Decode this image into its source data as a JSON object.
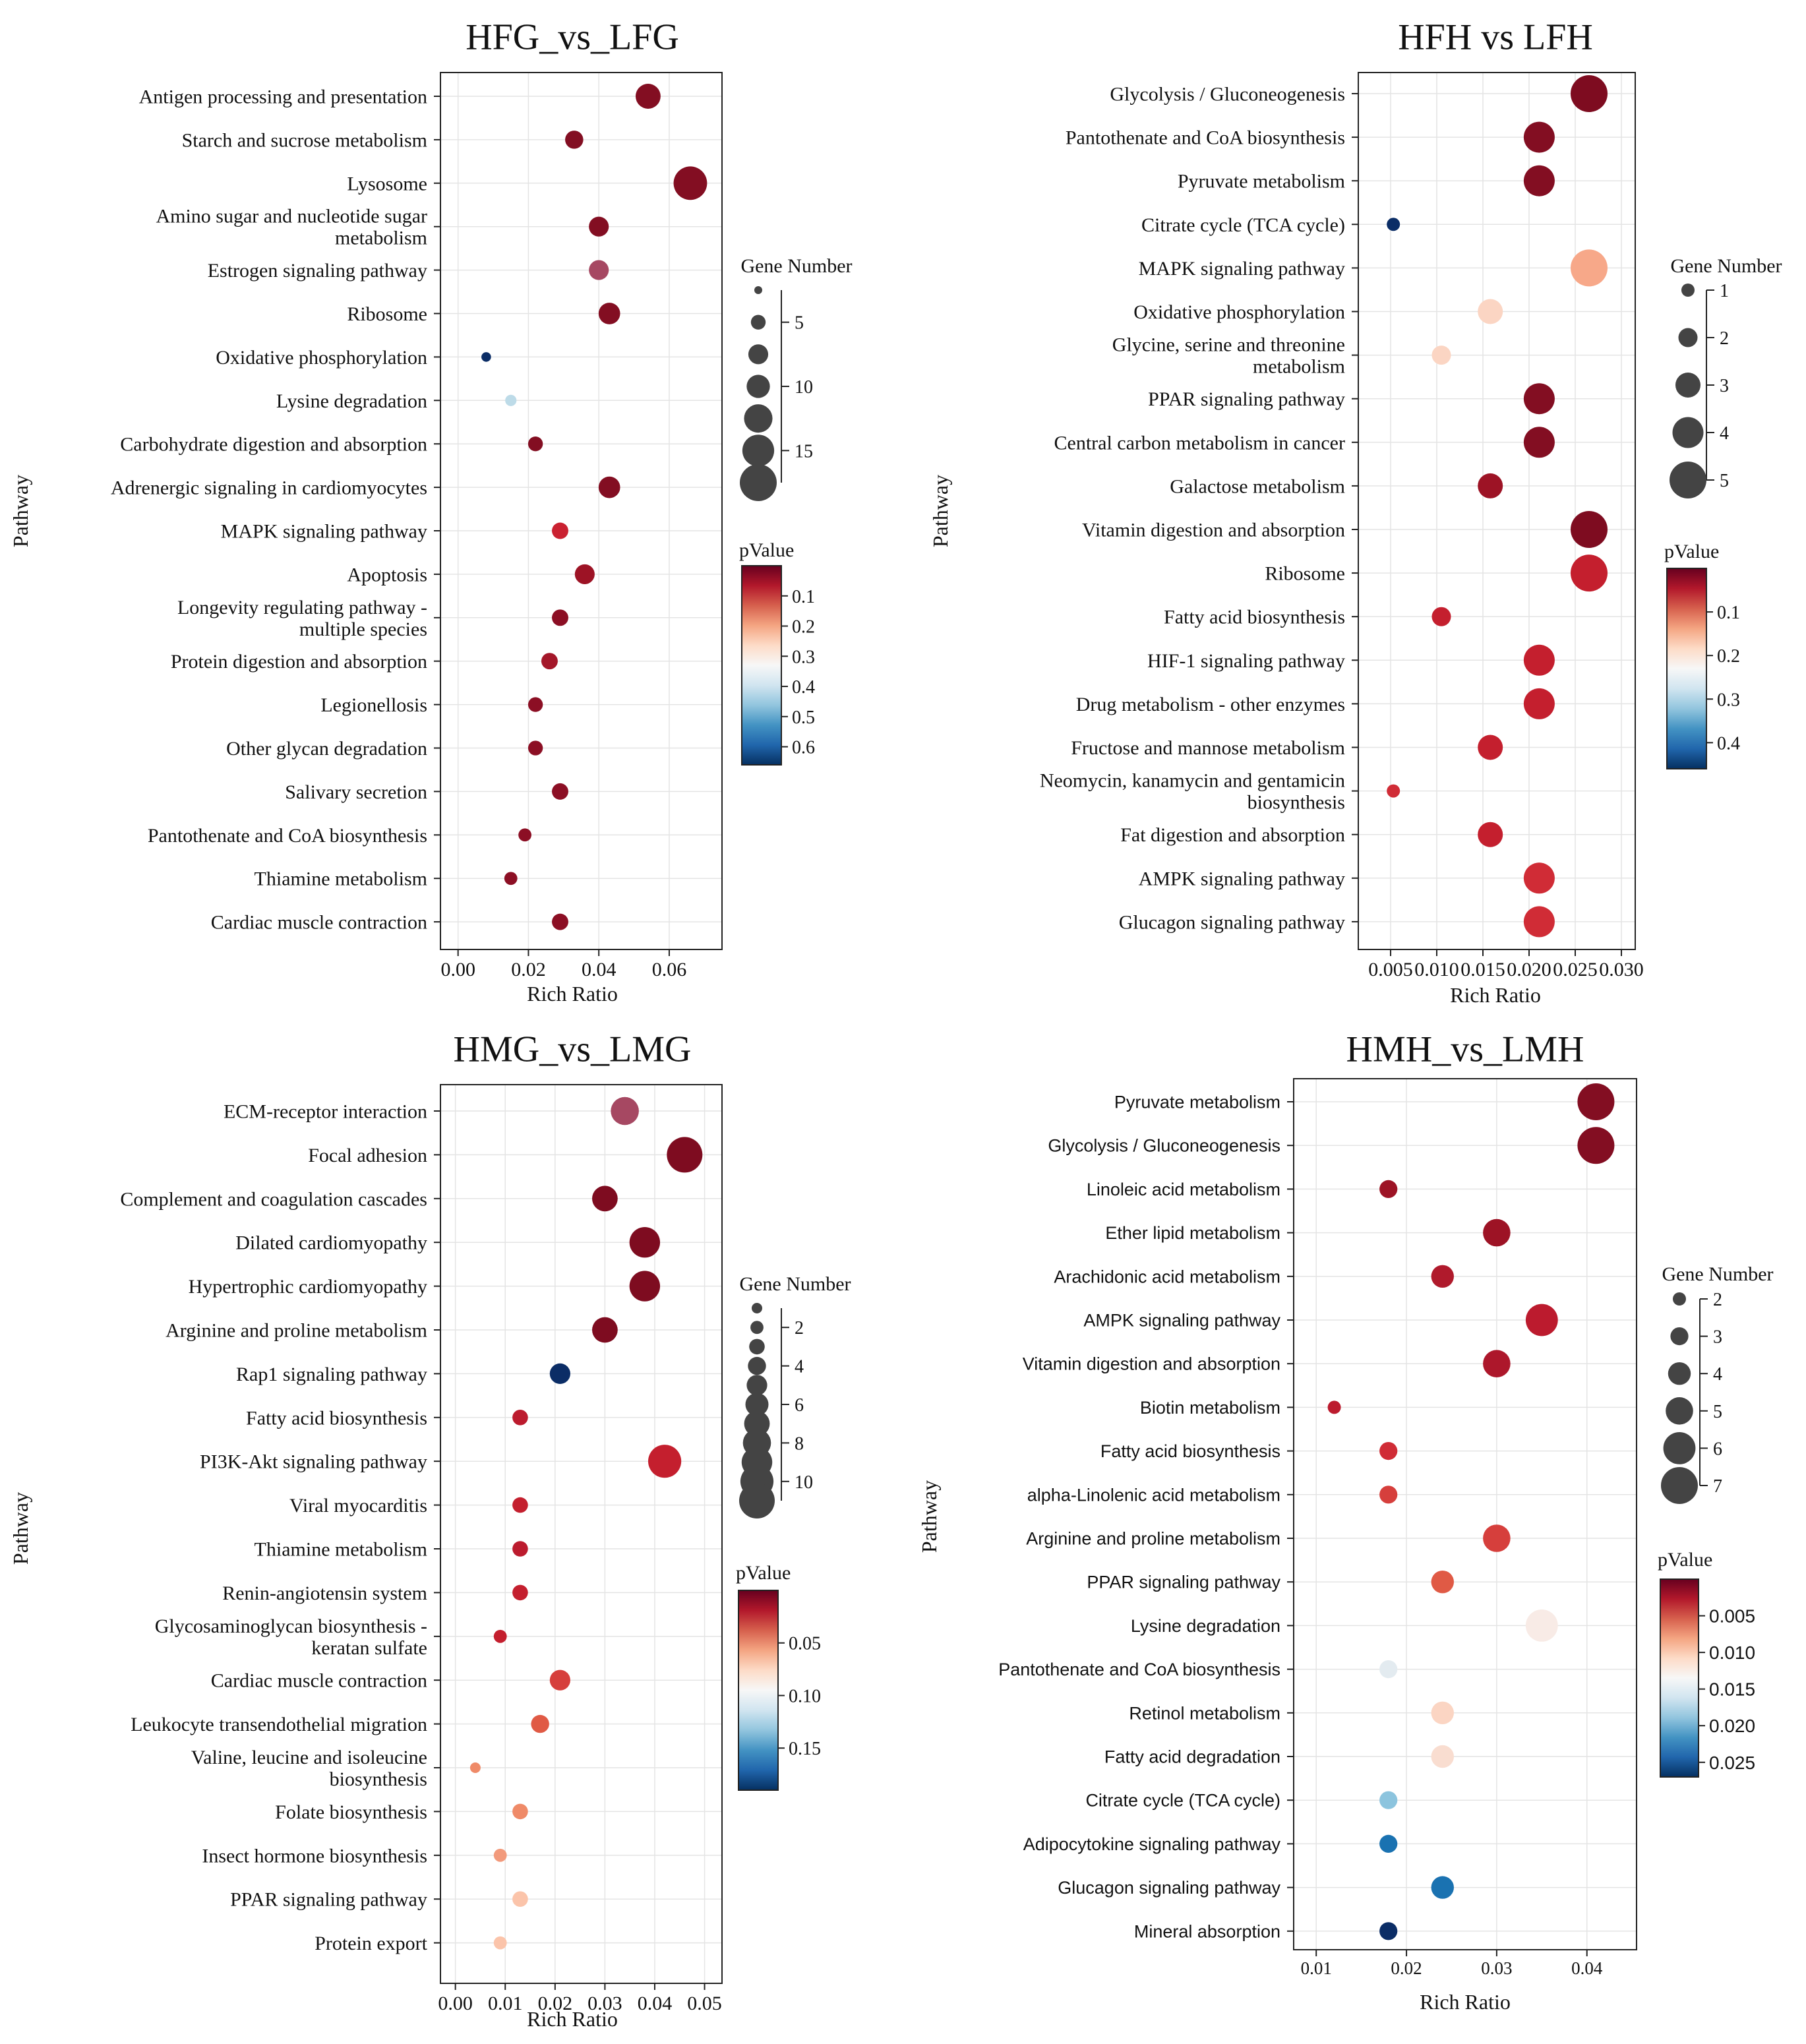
{
  "chart_data": [
    {
      "type": "scatter",
      "title": "HFG_vs_LFG",
      "xlabel": "Rich Ratio",
      "ylabel": "Pathway",
      "xlim": [
        -0.005,
        0.075
      ],
      "xticks": [
        0.0,
        0.02,
        0.04,
        0.06
      ],
      "xtick_labels": [
        "0.00",
        "0.02",
        "0.04",
        "0.06"
      ],
      "grid": true,
      "categories": [
        "Antigen processing and presentation",
        "Starch and sucrose metabolism",
        "Lysosome",
        "Amino sugar and nucleotide sugar metabolism",
        "Estrogen signaling pathway",
        "Ribosome",
        "Oxidative phosphorylation",
        "Lysine degradation",
        "Carbohydrate digestion and absorption",
        "Adrenergic signaling in cardiomyocytes",
        "MAPK signaling pathway",
        "Apoptosis",
        "Longevity regulating pathway - multiple species",
        "Protein digestion and absorption",
        "Legionellosis",
        "Other glycan degradation",
        "Salivary secretion",
        "Pantothenate and CoA biosynthesis",
        "Thiamine metabolism",
        "Cardiac muscle contraction"
      ],
      "category_lines": [
        [
          "Antigen processing and presentation"
        ],
        [
          "Starch and sucrose metabolism"
        ],
        [
          "Lysosome"
        ],
        [
          "Amino sugar and nucleotide sugar",
          "metabolism"
        ],
        [
          "Estrogen signaling pathway"
        ],
        [
          "Ribosome"
        ],
        [
          "Oxidative phosphorylation"
        ],
        [
          "Lysine degradation"
        ],
        [
          "Carbohydrate digestion and absorption"
        ],
        [
          "Adrenergic signaling in cardiomyocytes"
        ],
        [
          "MAPK signaling pathway"
        ],
        [
          "Apoptosis"
        ],
        [
          "Longevity regulating pathway -",
          "multiple species"
        ],
        [
          "Protein digestion and absorption"
        ],
        [
          "Legionellosis"
        ],
        [
          "Other glycan degradation"
        ],
        [
          "Salivary secretion"
        ],
        [
          "Pantothenate and CoA biosynthesis"
        ],
        [
          "Thiamine metabolism"
        ],
        [
          "Cardiac muscle contraction"
        ]
      ],
      "rich_ratio": [
        0.054,
        0.033,
        0.066,
        0.04,
        0.04,
        0.043,
        0.008,
        0.015,
        0.022,
        0.043,
        0.029,
        0.036,
        0.029,
        0.026,
        0.022,
        0.022,
        0.029,
        0.019,
        0.015,
        0.029
      ],
      "gene_number": [
        11,
        7,
        16,
        8,
        8,
        9,
        2,
        3,
        5,
        9,
        6,
        8,
        6,
        6,
        5,
        5,
        6,
        4,
        4,
        6
      ],
      "pvalue": [
        0.02,
        0.02,
        0.01,
        0.02,
        0.03,
        0.02,
        0.66,
        0.4,
        0.02,
        0.02,
        0.08,
        0.03,
        0.03,
        0.04,
        0.03,
        0.03,
        0.03,
        0.03,
        0.03,
        0.03
      ],
      "point_colors": [
        "#830e22",
        "#830e22",
        "#830e22",
        "#830e22",
        "#a64862",
        "#830e22",
        "#0b2d66",
        "#bddbe8",
        "#830e22",
        "#830e22",
        "#ca2131",
        "#9d1325",
        "#8c0f24",
        "#a41729",
        "#8c0f24",
        "#8c0f24",
        "#8c0f24",
        "#8c0f24",
        "#8c0f24",
        "#8c0f24"
      ],
      "size_legend": {
        "title": "Gene Number",
        "values": [
          1,
          5,
          8,
          10,
          13,
          15,
          18
        ],
        "labels": [
          "",
          "5",
          "",
          "10",
          "",
          "15",
          ""
        ]
      },
      "color_legend": {
        "title": "pValue",
        "range": [
          0.0,
          0.66
        ],
        "ticks": [
          0.1,
          0.2,
          0.3,
          0.4,
          0.5,
          0.6
        ],
        "tick_labels": [
          "0.1",
          "0.2",
          "0.3",
          "0.4",
          "0.5",
          "0.6"
        ]
      }
    },
    {
      "type": "scatter",
      "title": "HFH  vs  LFH",
      "xlabel": "Rich Ratio",
      "ylabel": "Pathway",
      "xlim": [
        0.0015,
        0.0315
      ],
      "xticks": [
        0.005,
        0.01,
        0.015,
        0.02,
        0.025,
        0.03
      ],
      "xtick_labels": [
        "0.005",
        "0.010",
        "0.015",
        "0.020",
        "0.025",
        "0.030"
      ],
      "grid": true,
      "categories": [
        "Glycolysis / Gluconeogenesis",
        "Pantothenate and CoA biosynthesis",
        "Pyruvate metabolism",
        "Citrate cycle (TCA cycle)",
        "MAPK signaling pathway",
        "Oxidative phosphorylation",
        "Glycine, serine and threonine metabolism",
        "PPAR signaling pathway",
        "Central carbon metabolism in cancer",
        "Galactose metabolism",
        "Vitamin digestion and absorption",
        "Ribosome",
        "Fatty acid biosynthesis",
        "HIF-1 signaling pathway",
        "Drug metabolism - other enzymes",
        "Fructose and mannose metabolism",
        "Neomycin, kanamycin and gentamicin biosynthesis",
        "Fat digestion and absorption",
        "AMPK signaling pathway",
        "Glucagon signaling pathway"
      ],
      "category_lines": [
        [
          "Glycolysis / Gluconeogenesis"
        ],
        [
          "Pantothenate and CoA biosynthesis"
        ],
        [
          "Pyruvate metabolism"
        ],
        [
          "Citrate cycle (TCA cycle)"
        ],
        [
          "MAPK signaling pathway"
        ],
        [
          "Oxidative phosphorylation"
        ],
        [
          "Glycine, serine and threonine",
          "metabolism"
        ],
        [
          "PPAR signaling pathway"
        ],
        [
          "Central carbon metabolism in cancer"
        ],
        [
          "Galactose metabolism"
        ],
        [
          "Vitamin digestion and absorption"
        ],
        [
          "Ribosome"
        ],
        [
          "Fatty acid biosynthesis"
        ],
        [
          "HIF-1 signaling pathway"
        ],
        [
          "Drug metabolism - other enzymes"
        ],
        [
          "Fructose and mannose metabolism"
        ],
        [
          "Neomycin, kanamycin and gentamicin",
          "biosynthesis"
        ],
        [
          "Fat digestion and absorption"
        ],
        [
          "AMPK signaling pathway"
        ],
        [
          "Glucagon signaling pathway"
        ]
      ],
      "rich_ratio": [
        0.0265,
        0.0211,
        0.0211,
        0.0053,
        0.0265,
        0.0158,
        0.0105,
        0.0211,
        0.0211,
        0.0158,
        0.0265,
        0.0265,
        0.0105,
        0.0211,
        0.0211,
        0.0158,
        0.0053,
        0.0158,
        0.0211,
        0.0211
      ],
      "gene_number": [
        5,
        4,
        4,
        1,
        5,
        3,
        2,
        4,
        4,
        3,
        5,
        5,
        2,
        4,
        4,
        3,
        1,
        3,
        4,
        4
      ],
      "pvalue": [
        0.005,
        0.01,
        0.01,
        0.46,
        0.17,
        0.21,
        0.21,
        0.01,
        0.01,
        0.02,
        0.005,
        0.04,
        0.04,
        0.04,
        0.04,
        0.04,
        0.05,
        0.04,
        0.05,
        0.05
      ],
      "point_colors": [
        "#7e0c20",
        "#830e22",
        "#830e22",
        "#0b2d66",
        "#f7a889",
        "#fbd5c3",
        "#fbd5c3",
        "#830e22",
        "#830e22",
        "#9d1325",
        "#7e0c20",
        "#c41f2e",
        "#c41f2e",
        "#c41f2e",
        "#c41f2e",
        "#c41f2e",
        "#d02c36",
        "#c41f2e",
        "#d02c36",
        "#d02c36"
      ],
      "size_legend": {
        "title": "Gene Number",
        "values": [
          1,
          2,
          3,
          4,
          5
        ],
        "labels": [
          "1",
          "2",
          "3",
          "4",
          "5"
        ]
      },
      "color_legend": {
        "title": "pValue",
        "range": [
          0.0,
          0.46
        ],
        "ticks": [
          0.1,
          0.2,
          0.3,
          0.4
        ],
        "tick_labels": [
          "0.1",
          "0.2",
          "0.3",
          "0.4"
        ]
      }
    },
    {
      "type": "scatter",
      "title": "HMG_vs_LMG",
      "xlabel": "Rich Ratio",
      "ylabel": "Pathway",
      "xlim": [
        -0.003,
        0.0535
      ],
      "xticks": [
        0.0,
        0.01,
        0.02,
        0.03,
        0.04,
        0.05
      ],
      "xtick_labels": [
        "0.00",
        "0.01",
        "0.02",
        "0.03",
        "0.04",
        "0.05"
      ],
      "grid": true,
      "categories": [
        "ECM-receptor interaction",
        "Focal adhesion",
        "Complement and coagulation cascades",
        "Dilated cardiomyopathy",
        "Hypertrophic cardiomyopathy",
        "Arginine and proline metabolism",
        "Rap1 signaling pathway",
        "Fatty acid biosynthesis",
        "PI3K-Akt signaling pathway",
        "Viral myocarditis",
        "Thiamine metabolism",
        "Renin-angiotensin system",
        "Glycosaminoglycan biosynthesis - keratan sulfate",
        "Cardiac muscle contraction",
        "Leukocyte transendothelial migration",
        "Valine, leucine and isoleucine biosynthesis",
        "Folate biosynthesis",
        "Insect hormone biosynthesis",
        "PPAR signaling pathway",
        "Protein export"
      ],
      "category_lines": [
        [
          "ECM-receptor interaction"
        ],
        [
          "Focal adhesion"
        ],
        [
          "Complement and coagulation cascades"
        ],
        [
          "Dilated cardiomyopathy"
        ],
        [
          "Hypertrophic cardiomyopathy"
        ],
        [
          "Arginine and proline metabolism"
        ],
        [
          "Rap1 signaling pathway"
        ],
        [
          "Fatty acid biosynthesis"
        ],
        [
          "PI3K-Akt signaling pathway"
        ],
        [
          "Viral myocarditis"
        ],
        [
          "Thiamine metabolism"
        ],
        [
          "Renin-angiotensin system"
        ],
        [
          "Glycosaminoglycan biosynthesis -",
          "keratan sulfate"
        ],
        [
          "Cardiac muscle contraction"
        ],
        [
          "Leukocyte transendothelial migration"
        ],
        [
          "Valine, leucine and isoleucine",
          "biosynthesis"
        ],
        [
          "Folate biosynthesis"
        ],
        [
          "Insect hormone biosynthesis"
        ],
        [
          "PPAR signaling pathway"
        ],
        [
          "Protein export"
        ]
      ],
      "rich_ratio": [
        0.034,
        0.046,
        0.03,
        0.038,
        0.038,
        0.03,
        0.021,
        0.013,
        0.042,
        0.013,
        0.013,
        0.013,
        0.009,
        0.021,
        0.017,
        0.004,
        0.013,
        0.009,
        0.013,
        0.009
      ],
      "gene_number": [
        8,
        11,
        7,
        9,
        9,
        7,
        5,
        3,
        10,
        3,
        3,
        3,
        2,
        5,
        4,
        1,
        3,
        2,
        3,
        2
      ],
      "pvalue": [
        0.01,
        0.005,
        0.005,
        0.005,
        0.005,
        0.005,
        0.19,
        0.02,
        0.02,
        0.02,
        0.02,
        0.03,
        0.03,
        0.04,
        0.045,
        0.06,
        0.06,
        0.065,
        0.075,
        0.075
      ],
      "point_colors": [
        "#a64862",
        "#7e0c20",
        "#7e0c20",
        "#7e0c20",
        "#7e0c20",
        "#7e0c20",
        "#0b2d66",
        "#bc1b2e",
        "#c41f2e",
        "#c41f2e",
        "#bc1b2e",
        "#c41f2e",
        "#c41f2e",
        "#d63f3c",
        "#e05a45",
        "#ef8a68",
        "#ef8a68",
        "#f29a7c",
        "#fbc4aa",
        "#fbc4aa"
      ],
      "size_legend": {
        "title": "Gene Number",
        "values": [
          1,
          2,
          3,
          4,
          5,
          6,
          7,
          8,
          9,
          10,
          11
        ],
        "labels": [
          "",
          "2",
          "",
          "4",
          "",
          "6",
          "",
          "8",
          "",
          "10",
          ""
        ]
      },
      "color_legend": {
        "title": "pValue",
        "range": [
          0.0,
          0.19
        ],
        "ticks": [
          0.05,
          0.1,
          0.15
        ],
        "tick_labels": [
          "0.05",
          "0.10",
          "0.15"
        ]
      }
    },
    {
      "type": "scatter",
      "title": "HMH_vs_LMH",
      "xlabel": "Rich Ratio",
      "ylabel": "Pathway",
      "xlim": [
        0.0075,
        0.0455
      ],
      "xticks": [
        0.01,
        0.02,
        0.03,
        0.04
      ],
      "xtick_labels": [
        "0.01",
        "0.02",
        "0.03",
        "0.04"
      ],
      "grid": true,
      "categories": [
        "Pyruvate metabolism",
        "Glycolysis / Gluconeogenesis",
        "Linoleic acid metabolism",
        "Ether lipid metabolism",
        "Arachidonic acid metabolism",
        "AMPK signaling pathway",
        "Vitamin digestion and absorption",
        "Biotin metabolism",
        "Fatty acid biosynthesis",
        "alpha-Linolenic acid metabolism",
        "Arginine and proline metabolism",
        "PPAR signaling pathway",
        "Lysine degradation",
        "Pantothenate and CoA biosynthesis",
        "Retinol metabolism",
        "Fatty acid degradation",
        "Citrate cycle (TCA cycle)",
        "Adipocytokine signaling pathway",
        "Glucagon signaling pathway",
        "Mineral absorption"
      ],
      "category_lines": [
        [
          "Pyruvate metabolism"
        ],
        [
          "Glycolysis / Gluconeogenesis"
        ],
        [
          "Linoleic acid metabolism"
        ],
        [
          "Ether lipid metabolism"
        ],
        [
          "Arachidonic acid metabolism"
        ],
        [
          "AMPK signaling pathway"
        ],
        [
          "Vitamin digestion and absorption"
        ],
        [
          "Biotin metabolism"
        ],
        [
          "Fatty acid biosynthesis"
        ],
        [
          "alpha-Linolenic acid metabolism"
        ],
        [
          "Arginine and proline metabolism"
        ],
        [
          "PPAR signaling pathway"
        ],
        [
          "Lysine degradation"
        ],
        [
          "Pantothenate and CoA biosynthesis"
        ],
        [
          "Retinol metabolism"
        ],
        [
          "Fatty acid degradation"
        ],
        [
          "Citrate cycle (TCA cycle)"
        ],
        [
          "Adipocytokine signaling pathway"
        ],
        [
          "Glucagon signaling pathway"
        ],
        [
          "Mineral absorption"
        ]
      ],
      "rich_ratio": [
        0.041,
        0.041,
        0.018,
        0.03,
        0.024,
        0.035,
        0.03,
        0.012,
        0.018,
        0.018,
        0.03,
        0.024,
        0.035,
        0.018,
        0.024,
        0.024,
        0.018,
        0.018,
        0.024,
        0.018
      ],
      "gene_number": [
        7,
        7,
        3,
        5,
        4,
        6,
        5,
        2,
        3,
        3,
        5,
        4,
        6,
        3,
        4,
        4,
        3,
        3,
        4,
        3
      ],
      "pvalue": [
        0.0005,
        0.0005,
        0.001,
        0.001,
        0.002,
        0.003,
        0.002,
        0.003,
        0.004,
        0.005,
        0.005,
        0.006,
        0.011,
        0.013,
        0.009,
        0.01,
        0.017,
        0.022,
        0.022,
        0.027
      ],
      "point_colors": [
        "#830e22",
        "#830e22",
        "#9d1325",
        "#9d1325",
        "#b01a2c",
        "#bc1b2e",
        "#ad172b",
        "#bc1b2e",
        "#d02c36",
        "#d63f3c",
        "#d63f3c",
        "#e05a45",
        "#f8ebe6",
        "#e3ebf0",
        "#fbd5c3",
        "#f9ddd0",
        "#8cc4de",
        "#1a72b1",
        "#1a72b1",
        "#0b2d66"
      ],
      "size_legend": {
        "title": "Gene Number",
        "values": [
          2,
          3,
          4,
          5,
          6,
          7
        ],
        "labels": [
          "2",
          "3",
          "4",
          "5",
          "6",
          "7"
        ]
      },
      "color_legend": {
        "title": "pValue",
        "range": [
          0.0,
          0.027
        ],
        "ticks": [
          0.005,
          0.01,
          0.015,
          0.02,
          0.025
        ],
        "tick_labels": [
          "0.005",
          "0.010",
          "0.015",
          "0.020",
          "0.025"
        ]
      }
    }
  ]
}
